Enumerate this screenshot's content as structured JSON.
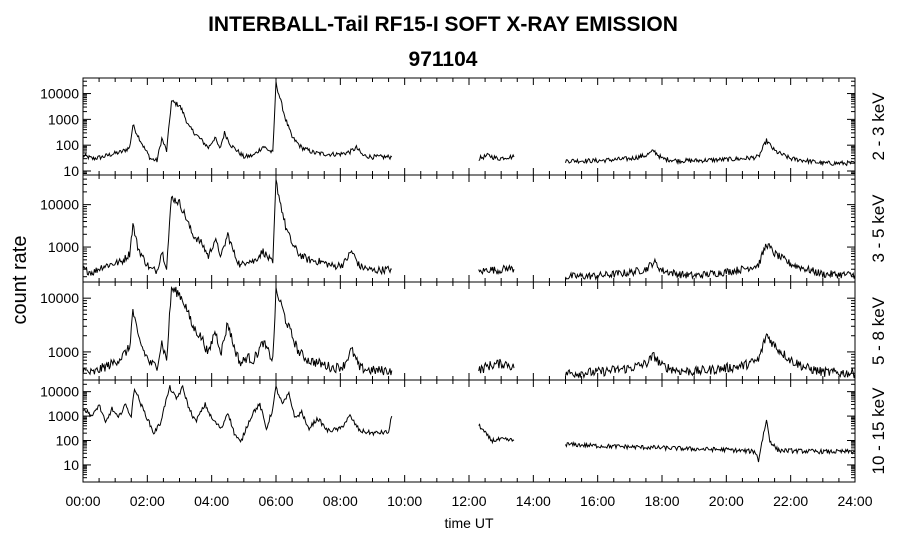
{
  "chart_data": {
    "type": "line",
    "title": "INTERBALL-Tail RF15-I SOFT X-RAY EMISSION",
    "subtitle": "971104",
    "ylabel": "count rate",
    "xlabel": "time UT",
    "x_ticks": [
      "00:00",
      "02:00",
      "04:00",
      "06:00",
      "08:00",
      "10:00",
      "12:00",
      "14:00",
      "16:00",
      "18:00",
      "20:00",
      "22:00",
      "24:00"
    ],
    "xlim_hours": [
      0,
      24
    ],
    "y_scale": "log",
    "grid": false,
    "panels": [
      {
        "name": "2 - 3 keV",
        "ylim": [
          7,
          40000
        ],
        "yticks": [
          10,
          100,
          1000,
          10000
        ],
        "ytick_labels": [
          "10",
          "100",
          "1000",
          "10000"
        ],
        "series": [
          [
            [
              0.0,
              40
            ],
            [
              0.3,
              30
            ],
            [
              0.6,
              35
            ],
            [
              0.9,
              45
            ],
            [
              1.2,
              55
            ],
            [
              1.45,
              80
            ],
            [
              1.55,
              600
            ],
            [
              1.7,
              250
            ],
            [
              1.9,
              80
            ],
            [
              2.1,
              30
            ],
            [
              2.3,
              25
            ],
            [
              2.45,
              180
            ],
            [
              2.6,
              60
            ],
            [
              2.75,
              5000
            ],
            [
              3.0,
              3500
            ],
            [
              3.1,
              2000
            ],
            [
              3.3,
              500
            ],
            [
              3.6,
              200
            ],
            [
              3.9,
              80
            ],
            [
              4.1,
              200
            ],
            [
              4.25,
              70
            ],
            [
              4.4,
              300
            ],
            [
              4.6,
              100
            ],
            [
              4.8,
              60
            ],
            [
              5.0,
              35
            ],
            [
              5.3,
              40
            ],
            [
              5.6,
              90
            ],
            [
              5.9,
              50
            ],
            [
              6.0,
              25000
            ],
            [
              6.15,
              5000
            ],
            [
              6.3,
              1000
            ],
            [
              6.5,
              200
            ],
            [
              6.8,
              80
            ],
            [
              7.2,
              50
            ],
            [
              7.6,
              45
            ],
            [
              8.0,
              45
            ],
            [
              8.3,
              55
            ],
            [
              8.5,
              80
            ],
            [
              8.7,
              40
            ],
            [
              9.0,
              35
            ],
            [
              9.6,
              35
            ]
          ],
          [
            [
              12.3,
              30
            ],
            [
              12.6,
              40
            ],
            [
              12.9,
              30
            ],
            [
              13.2,
              35
            ],
            [
              13.4,
              35
            ]
          ],
          [
            [
              15.0,
              25
            ],
            [
              16.0,
              25
            ],
            [
              17.0,
              30
            ],
            [
              17.5,
              40
            ],
            [
              17.75,
              60
            ],
            [
              18.0,
              30
            ],
            [
              18.5,
              25
            ],
            [
              19.0,
              25
            ],
            [
              20.0,
              28
            ],
            [
              20.5,
              30
            ],
            [
              21.0,
              35
            ],
            [
              21.25,
              150
            ],
            [
              21.5,
              60
            ],
            [
              22.0,
              30
            ],
            [
              22.5,
              25
            ],
            [
              23.0,
              20
            ],
            [
              24.0,
              20
            ]
          ]
        ]
      },
      {
        "name": "3 - 5 keV",
        "ylim": [
          150,
          50000
        ],
        "yticks": [
          1000,
          10000
        ],
        "ytick_labels": [
          "1000",
          "10000"
        ],
        "series": [
          [
            [
              0.0,
              300
            ],
            [
              0.3,
              250
            ],
            [
              0.6,
              350
            ],
            [
              0.9,
              400
            ],
            [
              1.2,
              450
            ],
            [
              1.45,
              700
            ],
            [
              1.55,
              3500
            ],
            [
              1.7,
              1000
            ],
            [
              1.9,
              500
            ],
            [
              2.1,
              300
            ],
            [
              2.3,
              280
            ],
            [
              2.45,
              800
            ],
            [
              2.6,
              350
            ],
            [
              2.75,
              15000
            ],
            [
              3.0,
              11000
            ],
            [
              3.2,
              5000
            ],
            [
              3.4,
              2000
            ],
            [
              3.7,
              1200
            ],
            [
              3.9,
              600
            ],
            [
              4.1,
              1500
            ],
            [
              4.3,
              600
            ],
            [
              4.5,
              2000
            ],
            [
              4.7,
              700
            ],
            [
              4.9,
              350
            ],
            [
              5.1,
              500
            ],
            [
              5.3,
              450
            ],
            [
              5.6,
              800
            ],
            [
              5.9,
              400
            ],
            [
              6.0,
              35000
            ],
            [
              6.15,
              10000
            ],
            [
              6.3,
              3000
            ],
            [
              6.5,
              1200
            ],
            [
              6.7,
              700
            ],
            [
              7.0,
              500
            ],
            [
              7.4,
              450
            ],
            [
              7.8,
              350
            ],
            [
              8.1,
              400
            ],
            [
              8.35,
              800
            ],
            [
              8.6,
              350
            ],
            [
              9.0,
              280
            ],
            [
              9.6,
              300
            ]
          ],
          [
            [
              12.3,
              250
            ],
            [
              12.6,
              300
            ],
            [
              12.9,
              280
            ],
            [
              13.2,
              320
            ],
            [
              13.4,
              300
            ]
          ],
          [
            [
              15.0,
              200
            ],
            [
              16.0,
              210
            ],
            [
              17.0,
              250
            ],
            [
              17.5,
              300
            ],
            [
              17.75,
              450
            ],
            [
              18.0,
              280
            ],
            [
              18.5,
              230
            ],
            [
              19.0,
              210
            ],
            [
              20.0,
              260
            ],
            [
              20.5,
              300
            ],
            [
              21.0,
              380
            ],
            [
              21.25,
              1200
            ],
            [
              21.5,
              700
            ],
            [
              22.0,
              400
            ],
            [
              22.5,
              300
            ],
            [
              23.0,
              230
            ],
            [
              24.0,
              220
            ]
          ]
        ]
      },
      {
        "name": "5 - 8 keV",
        "ylim": [
          300,
          20000
        ],
        "yticks": [
          1000,
          10000
        ],
        "ytick_labels": [
          "1000",
          "10000"
        ],
        "series": [
          [
            [
              0.0,
              450
            ],
            [
              0.3,
              400
            ],
            [
              0.6,
              500
            ],
            [
              0.9,
              600
            ],
            [
              1.2,
              800
            ],
            [
              1.45,
              1200
            ],
            [
              1.55,
              6000
            ],
            [
              1.7,
              2000
            ],
            [
              1.9,
              1000
            ],
            [
              2.1,
              600
            ],
            [
              2.3,
              550
            ],
            [
              2.45,
              1500
            ],
            [
              2.6,
              700
            ],
            [
              2.75,
              15000
            ],
            [
              3.0,
              12000
            ],
            [
              3.2,
              7000
            ],
            [
              3.4,
              3000
            ],
            [
              3.7,
              1800
            ],
            [
              3.9,
              900
            ],
            [
              4.1,
              2500
            ],
            [
              4.3,
              1000
            ],
            [
              4.5,
              3500
            ],
            [
              4.7,
              1200
            ],
            [
              4.9,
              600
            ],
            [
              5.1,
              800
            ],
            [
              5.3,
              700
            ],
            [
              5.6,
              1500
            ],
            [
              5.9,
              700
            ],
            [
              6.0,
              13000
            ],
            [
              6.15,
              8000
            ],
            [
              6.3,
              4000
            ],
            [
              6.5,
              2000
            ],
            [
              6.7,
              1000
            ],
            [
              7.0,
              700
            ],
            [
              7.4,
              600
            ],
            [
              7.8,
              500
            ],
            [
              8.1,
              550
            ],
            [
              8.35,
              1100
            ],
            [
              8.6,
              500
            ],
            [
              9.0,
              450
            ],
            [
              9.6,
              450
            ]
          ],
          [
            [
              12.3,
              450
            ],
            [
              12.6,
              550
            ],
            [
              12.9,
              600
            ],
            [
              13.2,
              600
            ],
            [
              13.4,
              500
            ]
          ],
          [
            [
              15.0,
              400
            ],
            [
              16.0,
              420
            ],
            [
              17.0,
              500
            ],
            [
              17.5,
              600
            ],
            [
              17.75,
              850
            ],
            [
              18.0,
              550
            ],
            [
              18.5,
              450
            ],
            [
              19.0,
              430
            ],
            [
              20.0,
              500
            ],
            [
              20.5,
              550
            ],
            [
              21.0,
              700
            ],
            [
              21.25,
              2100
            ],
            [
              21.5,
              1300
            ],
            [
              22.0,
              700
            ],
            [
              22.5,
              500
            ],
            [
              23.0,
              420
            ],
            [
              24.0,
              400
            ]
          ]
        ]
      },
      {
        "name": "10 - 15 keV",
        "ylim": [
          2,
          30000
        ],
        "yticks": [
          10,
          100,
          1000,
          10000
        ],
        "ytick_labels": [
          "10",
          "100",
          "1000",
          "10000"
        ],
        "series": [
          [
            [
              0.0,
              2000
            ],
            [
              0.3,
              1000
            ],
            [
              0.5,
              3000
            ],
            [
              0.7,
              500
            ],
            [
              0.9,
              2000
            ],
            [
              1.1,
              800
            ],
            [
              1.3,
              3000
            ],
            [
              1.5,
              1000
            ],
            [
              1.6,
              15000
            ],
            [
              1.8,
              3000
            ],
            [
              2.0,
              800
            ],
            [
              2.2,
              200
            ],
            [
              2.4,
              500
            ],
            [
              2.55,
              3000
            ],
            [
              2.7,
              15000
            ],
            [
              2.9,
              5000
            ],
            [
              3.1,
              15000
            ],
            [
              3.3,
              2000
            ],
            [
              3.5,
              600
            ],
            [
              3.8,
              3000
            ],
            [
              4.0,
              800
            ],
            [
              4.3,
              300
            ],
            [
              4.5,
              1500
            ],
            [
              4.7,
              200
            ],
            [
              4.9,
              80
            ],
            [
              5.1,
              400
            ],
            [
              5.3,
              1500
            ],
            [
              5.5,
              3000
            ],
            [
              5.7,
              300
            ],
            [
              5.9,
              2000
            ],
            [
              6.0,
              15000
            ],
            [
              6.2,
              3000
            ],
            [
              6.4,
              8000
            ],
            [
              6.6,
              800
            ],
            [
              6.8,
              1500
            ],
            [
              7.0,
              300
            ],
            [
              7.3,
              800
            ],
            [
              7.6,
              250
            ],
            [
              8.0,
              300
            ],
            [
              8.3,
              1000
            ],
            [
              8.6,
              250
            ],
            [
              9.0,
              200
            ],
            [
              9.5,
              220
            ],
            [
              9.6,
              1000
            ]
          ],
          [
            [
              12.3,
              450
            ],
            [
              12.5,
              200
            ],
            [
              12.7,
              100
            ],
            [
              13.0,
              110
            ],
            [
              13.4,
              100
            ]
          ],
          [
            [
              15.0,
              70
            ],
            [
              16.0,
              60
            ],
            [
              17.0,
              55
            ],
            [
              18.0,
              50
            ],
            [
              19.0,
              45
            ],
            [
              20.0,
              42
            ],
            [
              20.9,
              35
            ],
            [
              21.0,
              15
            ],
            [
              21.1,
              80
            ],
            [
              21.25,
              700
            ],
            [
              21.35,
              100
            ],
            [
              21.6,
              40
            ],
            [
              22.0,
              38
            ],
            [
              23.0,
              35
            ],
            [
              24.0,
              35
            ]
          ]
        ]
      }
    ]
  }
}
